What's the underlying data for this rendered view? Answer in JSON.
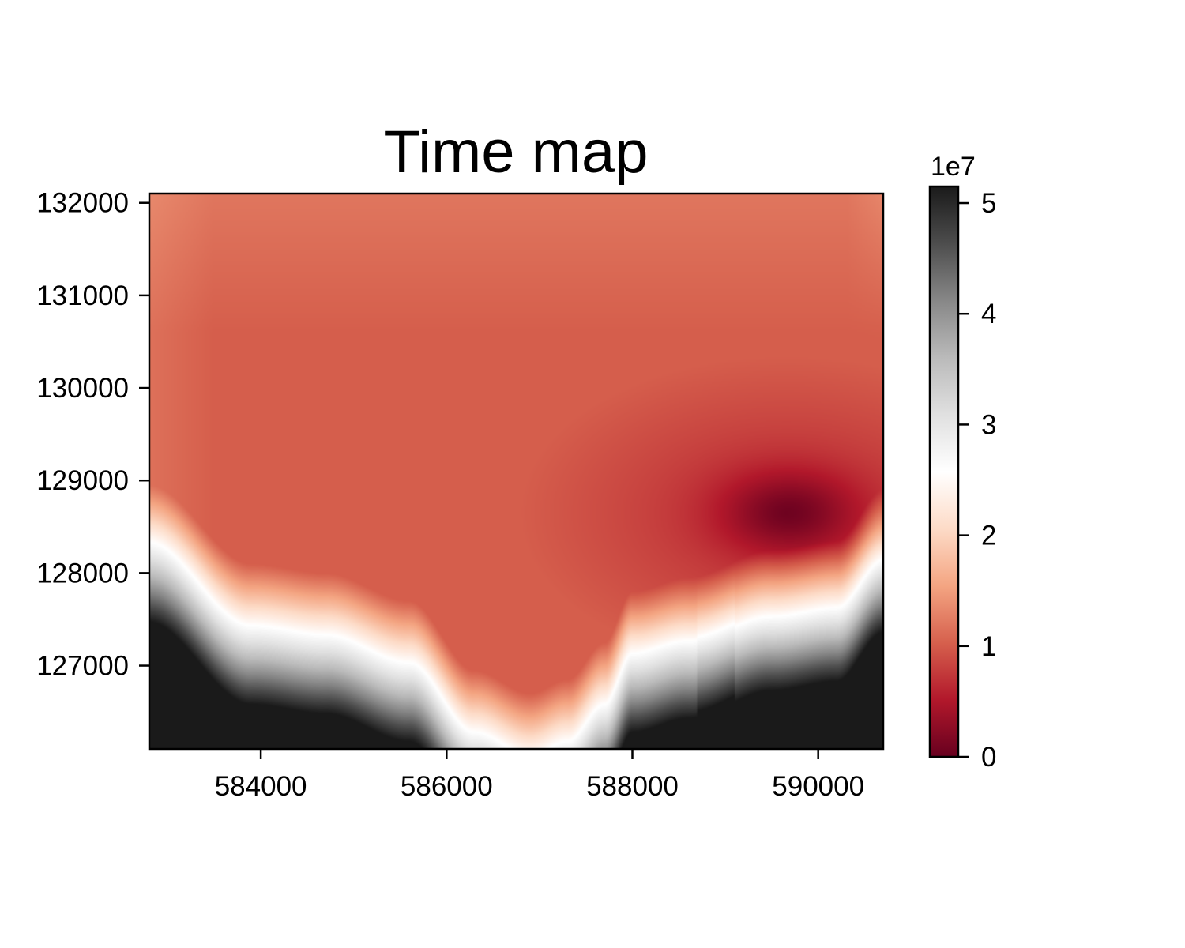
{
  "chart_data": {
    "type": "heatmap",
    "title": "Time map",
    "xlabel": "",
    "ylabel": "",
    "xlim": [
      582800,
      590700
    ],
    "ylim": [
      126100,
      132100
    ],
    "x_ticks": [
      584000,
      586000,
      588000,
      590000
    ],
    "y_ticks": [
      127000,
      128000,
      129000,
      130000,
      131000,
      132000
    ],
    "colorbar": {
      "range": [
        0,
        5.15
      ],
      "ticks": [
        0,
        1,
        2,
        3,
        4,
        5
      ],
      "offset_label": "1e7",
      "colormap": "RdGy",
      "colors": [
        "#67001f",
        "#b2182b",
        "#d6604d",
        "#f4a582",
        "#fddbc7",
        "#ffffff",
        "#e0e0e0",
        "#bababa",
        "#878787",
        "#4d4d4d",
        "#1a1a1a"
      ]
    },
    "features": {
      "global_minimum_near": {
        "x": 589600,
        "y": 128700,
        "value": 0.0
      },
      "high_values_along_bottom_edge": true,
      "maximum_near": {
        "x": 590700,
        "y": 126100,
        "value": 5.1
      }
    },
    "grid": false
  }
}
